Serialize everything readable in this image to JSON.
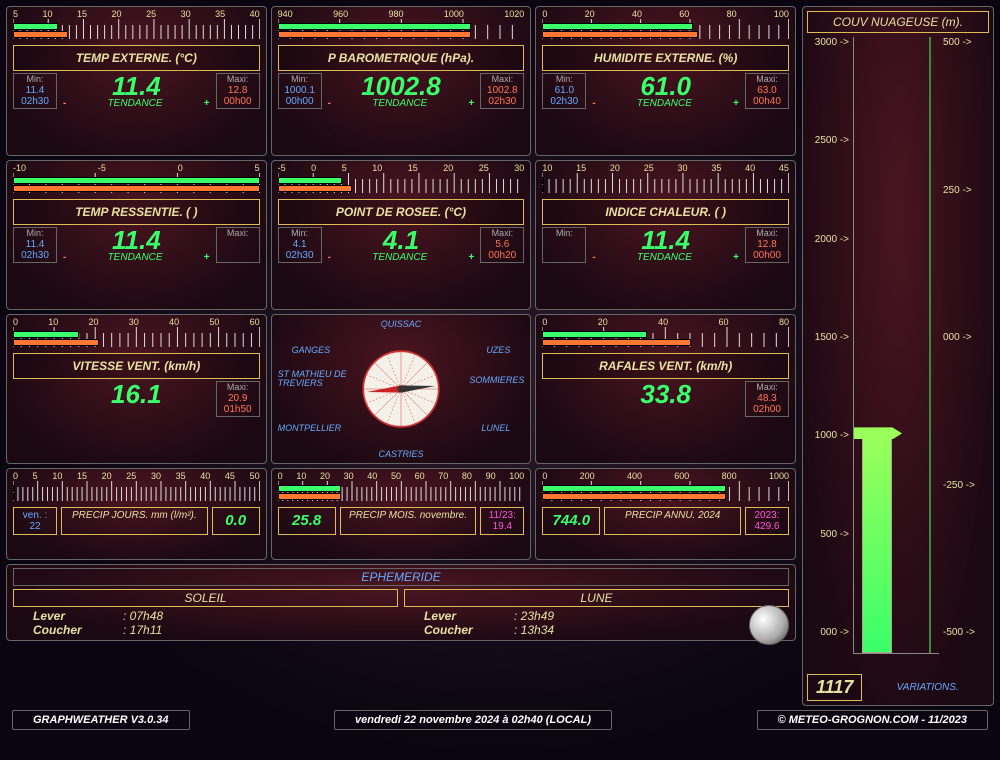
{
  "colors": {
    "accent_green": "#3aff6a",
    "accent_orange": "#ff7733",
    "gold": "#e8e0a0",
    "blue": "#66aaff",
    "pink": "#ff55dd",
    "border_gold": "#ddbb55"
  },
  "gauges": [
    {
      "key": "temp_ext",
      "title": "TEMP EXTERNE. (°C)",
      "value": "11.4",
      "min_label": "Min:",
      "min_val": "11.4",
      "min_time": "02h30",
      "max_label": "Maxi:",
      "max_val": "12.8",
      "max_time": "00h00",
      "ruler_min": 5,
      "ruler_max": 40,
      "ruler_step": 5,
      "bar1_from": 5,
      "bar1_to": 11.4,
      "bar2_from": 5,
      "bar2_to": 12.8,
      "tendance": "TENDANCE"
    },
    {
      "key": "baro",
      "title": "P BAROMETRIQUE (hPa).",
      "value": "1002.8",
      "min_label": "Min:",
      "min_val": "1000.1",
      "min_time": "00h00",
      "max_label": "Maxi:",
      "max_val": "1002.8",
      "max_time": "02h30",
      "ruler_min": 940,
      "ruler_max": 1020,
      "ruler_step": 20,
      "bar1_from": 940,
      "bar1_to": 1002.8,
      "bar2_from": 940,
      "bar2_to": 1002.8,
      "tendance": "TENDANCE"
    },
    {
      "key": "humid",
      "title": "HUMIDITE EXTERNE. (%)",
      "value": "61.0",
      "min_label": "Min:",
      "min_val": "61.0",
      "min_time": "02h30",
      "max_label": "Maxi:",
      "max_val": "63.0",
      "max_time": "00h40",
      "ruler_min": 0,
      "ruler_max": 100,
      "ruler_step": 20,
      "bar1_from": 0,
      "bar1_to": 61,
      "bar2_from": 0,
      "bar2_to": 63,
      "tendance": "TENDANCE"
    },
    {
      "key": "ressentie",
      "title": "TEMP RESSENTIE. ( )",
      "value": "11.4",
      "min_label": "Min:",
      "min_val": "11.4",
      "min_time": "02h30",
      "max_label": "Maxi:",
      "max_val": "",
      "max_time": "",
      "ruler_min": -10,
      "ruler_max": 5,
      "ruler_step": 5,
      "bar1_from": -10,
      "bar1_to": 5,
      "bar2_from": -10,
      "bar2_to": 5,
      "tendance": "TENDANCE"
    },
    {
      "key": "rosee",
      "title": "POINT DE ROSEE. (°C)",
      "value": "4.1",
      "min_label": "Min:",
      "min_val": "4.1",
      "min_time": "02h30",
      "max_label": "Maxi:",
      "max_val": "5.6",
      "max_time": "00h20",
      "ruler_min": -5,
      "ruler_max": 30,
      "ruler_step": 5,
      "bar1_from": -5,
      "bar1_to": 4.1,
      "bar2_from": -5,
      "bar2_to": 5.6,
      "tendance": "TENDANCE"
    },
    {
      "key": "chaleur",
      "title": "INDICE CHALEUR. ( )",
      "value": "11.4",
      "min_label": "Min:",
      "min_val": "",
      "min_time": "",
      "max_label": "Maxi:",
      "max_val": "12.8",
      "max_time": "00h00",
      "ruler_min": 10,
      "ruler_max": 45,
      "ruler_step": 5,
      "bar1_from": 10,
      "bar1_to": 10,
      "bar2_from": 10,
      "bar2_to": 10,
      "tendance": "TENDANCE"
    }
  ],
  "wind_speed": {
    "title": "VITESSE VENT. (km/h)",
    "value": "16.1",
    "max_label": "Maxi:",
    "max_val": "20.9",
    "max_time": "01h50",
    "ruler_min": 0,
    "ruler_max": 60,
    "ruler_step": 10,
    "bar1_to": 16.1,
    "bar2_to": 20.9
  },
  "gusts": {
    "title": "RAFALES VENT. (km/h)",
    "value": "33.8",
    "max_label": "Maxi:",
    "max_val": "48.3",
    "max_time": "02h00",
    "ruler_min": 0,
    "ruler_max": 80,
    "ruler_step": 20,
    "bar1_to": 33.8,
    "bar2_to": 48.3
  },
  "compass": {
    "labels": {
      "n": "QUISSAC",
      "ne": "UZES",
      "e": "SOMMIERES",
      "se": "LUNEL",
      "s": "CASTRIES",
      "sw": "MONTPELLIER",
      "w": "ST MATHIEU DE TREVIERS",
      "nw": "GANGES"
    },
    "direction_deg": 265
  },
  "precip": [
    {
      "ruler_min": 0,
      "ruler_max": 50,
      "ruler_step": 5,
      "bar_to": 0,
      "left_label1": "ven. :",
      "left_label2": "22",
      "mid_label": "PRECIP JOURS. mm (l/m²).",
      "val": "0.0",
      "right_label1": "",
      "right_label2": ""
    },
    {
      "ruler_min": 0,
      "ruler_max": 100,
      "ruler_step": 10,
      "bar_to": 25.8,
      "left_label1": "",
      "left_label2": "",
      "mid_label": "PRECIP MOIS. novembre.",
      "val": "25.8",
      "right_label1": "11/23:",
      "right_label2": "19.4"
    },
    {
      "ruler_min": 0,
      "ruler_max": 1000,
      "ruler_step": 200,
      "bar_to": 744,
      "left_label1": "",
      "left_label2": "",
      "mid_label": "PRECIP ANNU. 2024",
      "val": "744.0",
      "right_label1": "2023:",
      "right_label2": "429.6"
    }
  ],
  "ephemeride": {
    "header": "EPHEMERIDE",
    "sun": {
      "title": "SOLEIL",
      "rise_label": "Lever",
      "rise": ": 07h48",
      "set_label": "Coucher",
      "set": ": 17h11"
    },
    "moon": {
      "title": "LUNE",
      "rise_label": "Lever",
      "rise": ": 23h49",
      "set_label": "Coucher",
      "set": ": 13h34"
    }
  },
  "cloud": {
    "title": "COUV NUAGEUSE (m).",
    "value": "1117",
    "variations": "VARIATIONS.",
    "left_scale": [
      3000,
      2500,
      2000,
      1500,
      1000,
      500,
      0
    ],
    "right_scale": [
      500,
      250,
      0,
      -250,
      -500
    ],
    "bar_height_m": 1117
  },
  "footer": {
    "left": "GRAPHWEATHER V3.0.34",
    "center": "vendredi 22 novembre 2024 à 02h40 (LOCAL)",
    "right": "© METEO-GROGNON.COM - 11/2023"
  }
}
